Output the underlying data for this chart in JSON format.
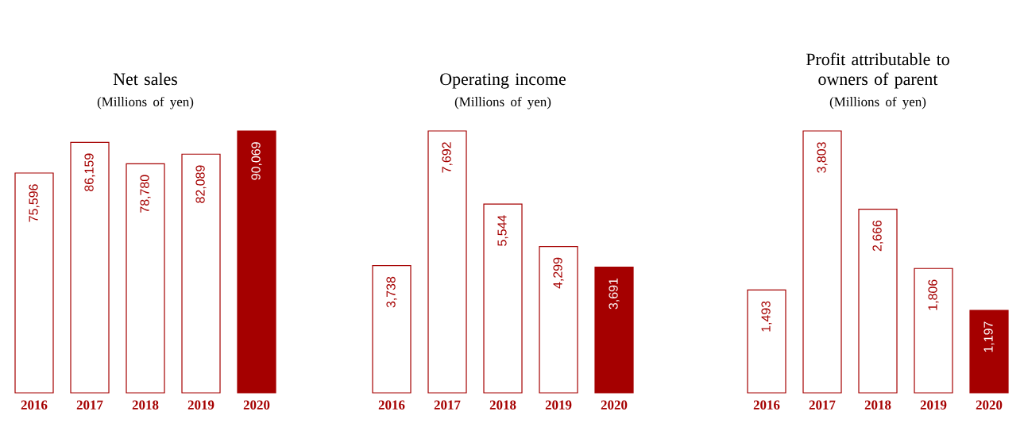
{
  "chart_data": [
    {
      "type": "bar",
      "title": "Net sales",
      "subtitle": "(Millions of yen)",
      "categories": [
        "2016",
        "2017",
        "2018",
        "2019",
        "2020"
      ],
      "values": [
        75596,
        86159,
        78780,
        82089,
        90069
      ],
      "value_labels": [
        "75,596",
        "86,159",
        "78,780",
        "82,089",
        "90,069"
      ],
      "color": "#a50000",
      "colors": [
        "#ffffff",
        "#ffffff",
        "#ffffff",
        "#ffffff",
        "#a50000"
      ],
      "tick_labels": "x"
    },
    {
      "type": "bar",
      "title": "Operating income",
      "subtitle": "(Millions of yen)",
      "categories": [
        "2016",
        "2017",
        "2018",
        "2019",
        "2020"
      ],
      "values": [
        3738,
        7692,
        5544,
        4299,
        3691
      ],
      "value_labels": [
        "3,738",
        "7,692",
        "5,544",
        "4,299",
        "3,691"
      ],
      "color": "#a50000",
      "colors": [
        "#ffffff",
        "#ffffff",
        "#ffffff",
        "#ffffff",
        "#a50000"
      ],
      "tick_labels": "x"
    },
    {
      "type": "bar",
      "title": "Profit attributable to owners of parent",
      "subtitle": "(Millions of yen)",
      "categories": [
        "2016",
        "2017",
        "2018",
        "2019",
        "2020"
      ],
      "values": [
        1493,
        3803,
        2666,
        1806,
        1197
      ],
      "value_labels": [
        "1,493",
        "3,803",
        "2,666",
        "1,806",
        "1,197"
      ],
      "color": "#a50000",
      "colors": [
        "#ffffff",
        "#ffffff",
        "#ffffff",
        "#ffffff",
        "#a50000"
      ],
      "tick_labels": "x"
    }
  ]
}
